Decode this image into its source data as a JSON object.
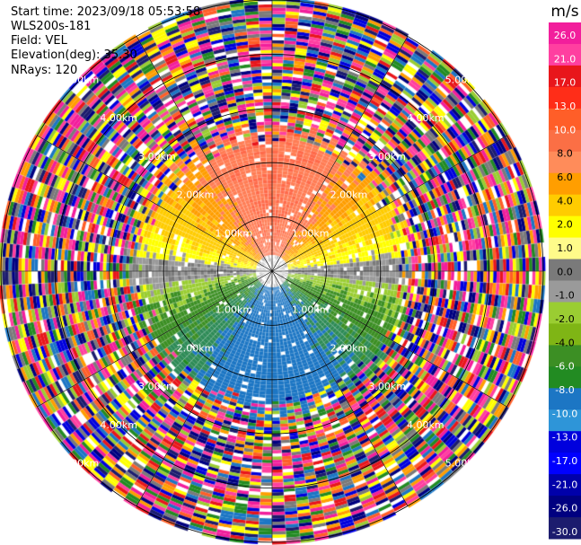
{
  "header": {
    "start_time": "Start time: 2023/09/18 05:53:58",
    "instrument": "WLS200s-181",
    "field": "Field: VEL",
    "elevation": "Elevation(deg): 35.30",
    "nrays": "NRays: 120"
  },
  "chart_data": {
    "type": "heatmap",
    "projection": "polar-ppi",
    "field": "VEL",
    "units": "m/s",
    "nrays": 120,
    "range_rings_km": [
      1.0,
      2.0,
      3.0,
      4.0,
      5.0
    ],
    "ring_labels": [
      "1.00km",
      "2.00km",
      "3.00km",
      "4.00km",
      "5.00km"
    ],
    "spokes_deg": [
      0,
      30,
      60,
      90,
      120,
      150
    ],
    "max_range_km": 5.0,
    "velocity_pattern": {
      "approx_clean_range_km": 2.5,
      "north_sector": "red/orange (approx +8 to +17 m/s)",
      "south_sector": "green/blue (approx -4 to -10 m/s)",
      "east_west_axis": "grey (approx 0 m/s)",
      "beyond_clean_range": "noise"
    },
    "colorbar": {
      "title": "m/s",
      "tick_labels": [
        "26.0",
        "21.0",
        "17.0",
        "13.0",
        "10.0",
        "8.0",
        "6.0",
        "4.0",
        "2.0",
        "1.0",
        "0.0",
        "-1.0",
        "-2.0",
        "-4.0",
        "-6.0",
        "-8.0",
        "-10.0",
        "-13.0",
        "-17.0",
        "-21.0",
        "-26.0",
        "-30.0"
      ],
      "colors": [
        "#f21e9c",
        "#ff3fa0",
        "#e8161b",
        "#ff2d18",
        "#ff5e28",
        "#fb6f45",
        "#ff8c5a",
        "#ff9e00",
        "#ffcc00",
        "#ffff00",
        "#fffb8a",
        "#7a7a7a",
        "#9a9a9a",
        "#9acd32",
        "#7fb515",
        "#3c8f24",
        "#228b22",
        "#1c76c4",
        "#2e95d8",
        "#0000dd",
        "#0000ff",
        "#0000aa",
        "#000080",
        "#1c1c6e"
      ]
    }
  }
}
